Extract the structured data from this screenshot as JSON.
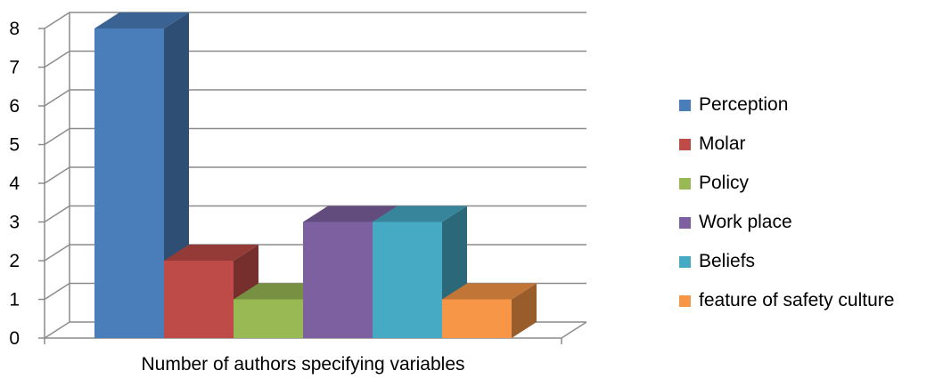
{
  "chart_data": {
    "type": "bar",
    "style": "3d-clustered",
    "categories": [
      "Number of authors specifying variables"
    ],
    "xlabel": "Number of authors specifying variables",
    "ylim": [
      0,
      8
    ],
    "yticks": [
      "0",
      "1",
      "2",
      "3",
      "4",
      "5",
      "6",
      "7",
      "8"
    ],
    "grid": true,
    "legend_position": "right",
    "series": [
      {
        "name": "Perception",
        "values": [
          8
        ],
        "color": "#4a7ebb"
      },
      {
        "name": "Molar",
        "values": [
          2
        ],
        "color": "#be4b48"
      },
      {
        "name": "Policy",
        "values": [
          1
        ],
        "color": "#98b954"
      },
      {
        "name": "Work place",
        "values": [
          3
        ],
        "color": "#7d60a0"
      },
      {
        "name": "Beliefs",
        "values": [
          3
        ],
        "color": "#46aac5"
      },
      {
        "name": "feature of safety culture",
        "values": [
          1
        ],
        "color": "#f79646"
      }
    ]
  }
}
